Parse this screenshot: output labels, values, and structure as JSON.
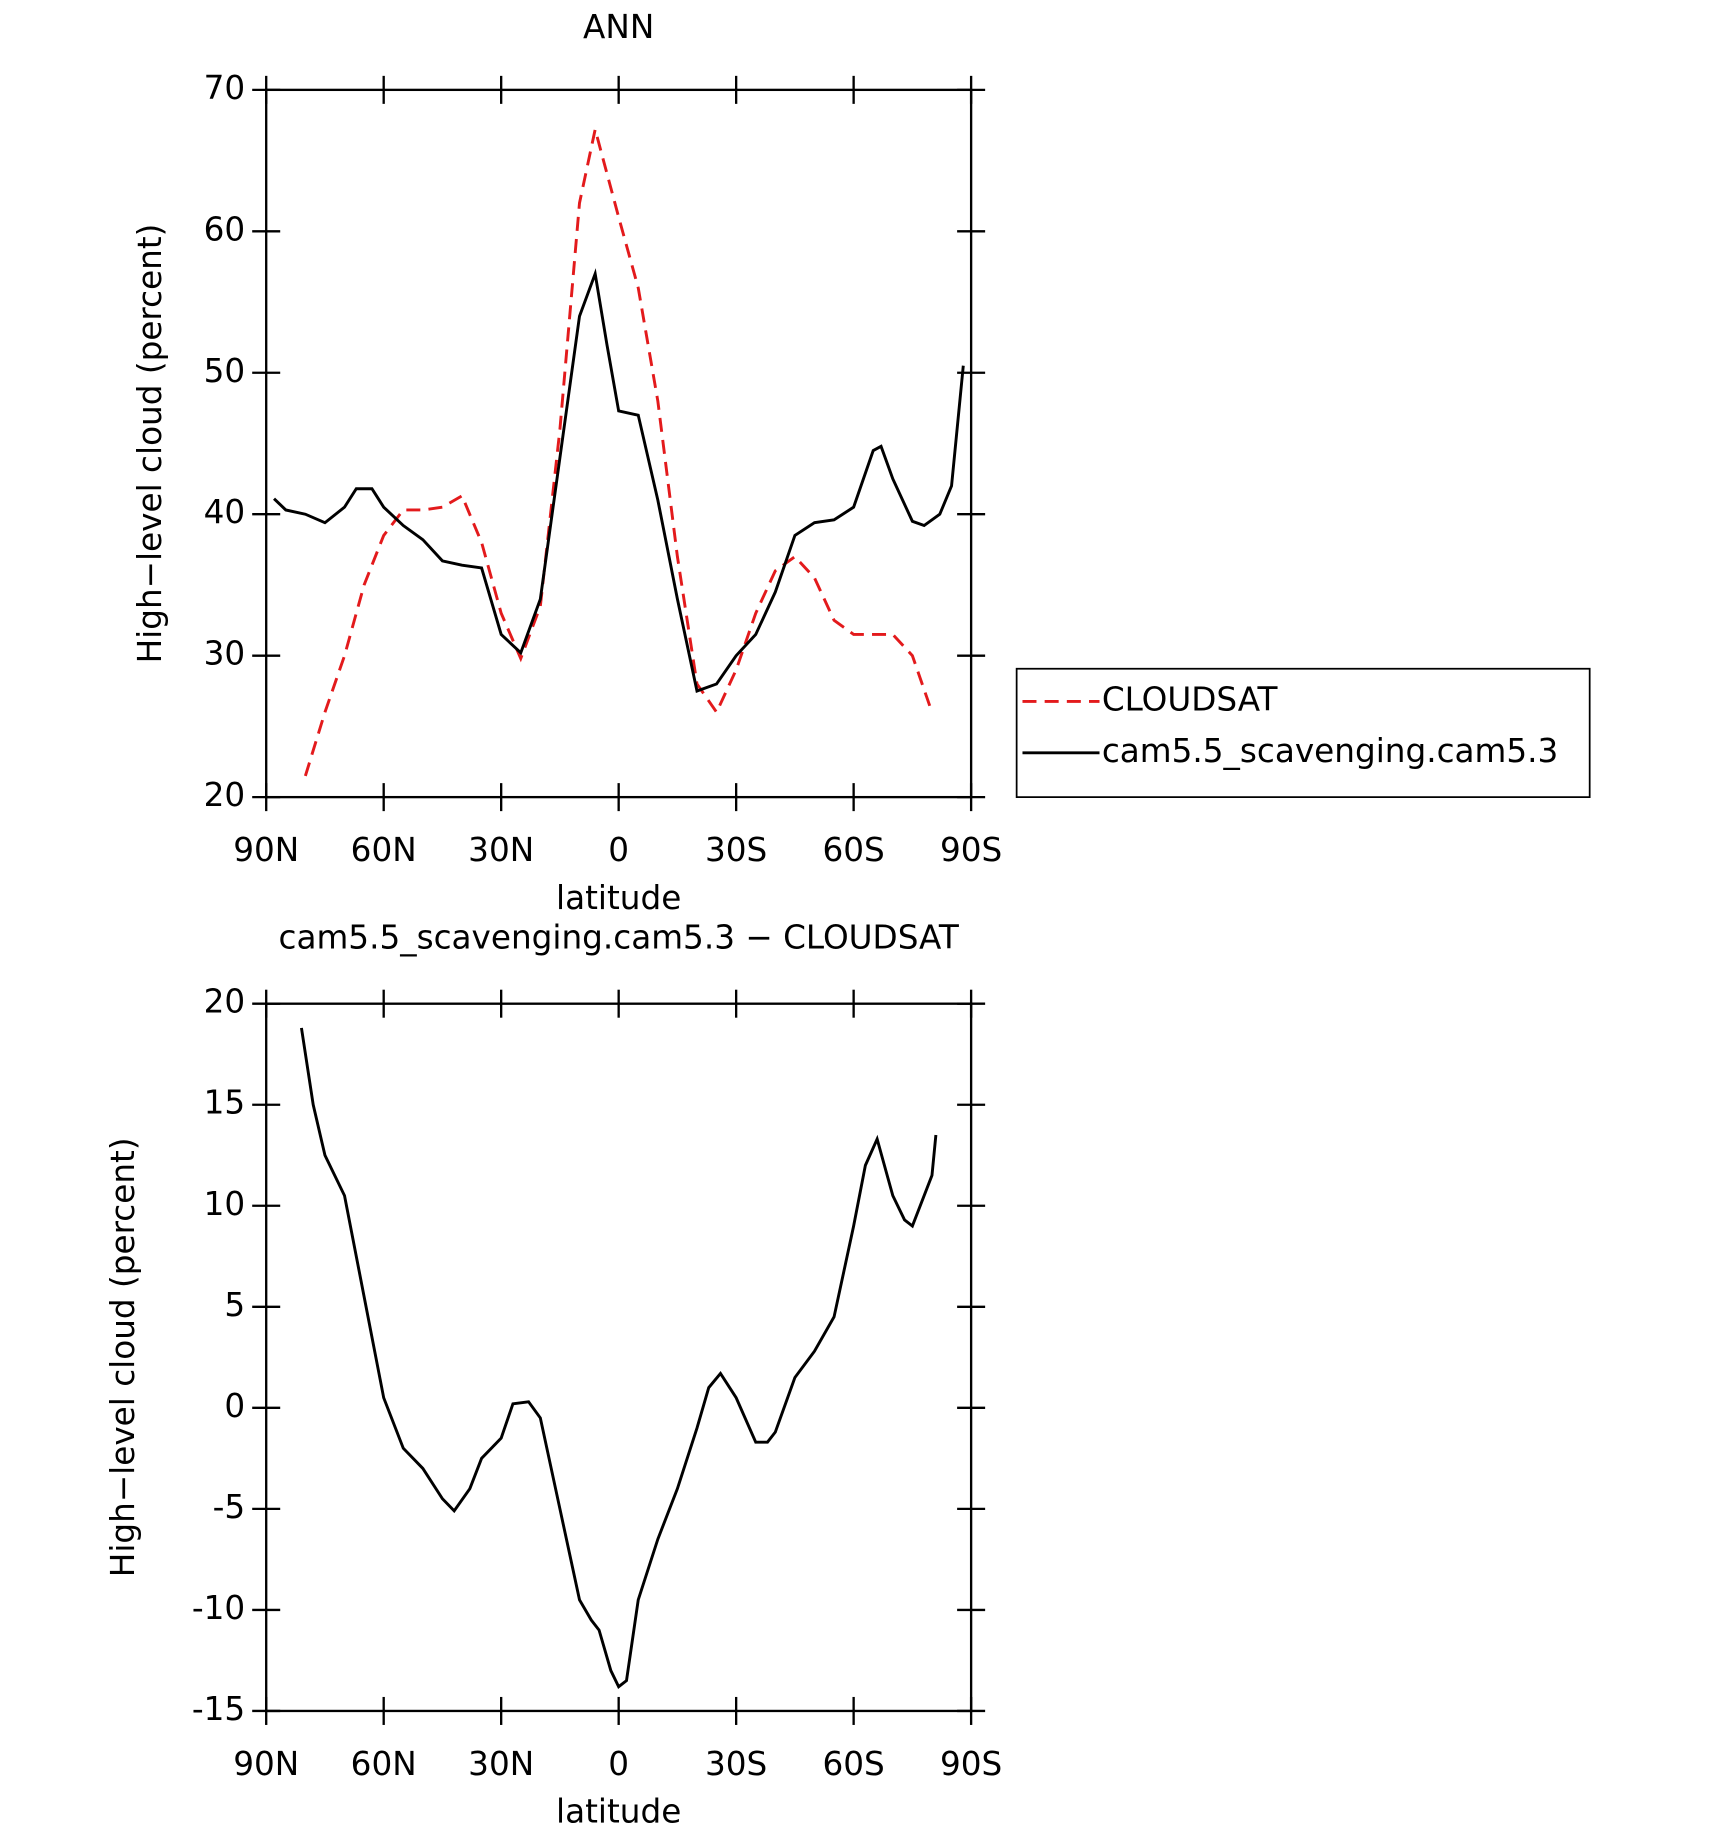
{
  "chart_data": [
    {
      "type": "line",
      "title": "ANN",
      "x_label": "latitude",
      "y_label": "High−level cloud (percent)",
      "xlim": [
        90,
        -90
      ],
      "xticks": [
        {
          "value": 90,
          "label": "90N"
        },
        {
          "value": 60,
          "label": "60N"
        },
        {
          "value": 30,
          "label": "30N"
        },
        0,
        {
          "value": -30,
          "label": "30S"
        },
        {
          "value": -60,
          "label": "60S"
        },
        {
          "value": -90,
          "label": "90S"
        }
      ],
      "ylim": [
        20,
        70
      ],
      "yticks": [
        20,
        30,
        40,
        50,
        60,
        70
      ],
      "legend": "right",
      "series": [
        {
          "name": "CLOUDSAT",
          "color": "#e31a1c",
          "dash": true,
          "x": [
            80,
            75,
            70,
            65,
            60,
            55,
            50,
            45,
            40,
            35,
            30,
            25,
            20,
            15,
            10,
            6,
            0,
            -5,
            -10,
            -15,
            -20,
            -25,
            -30,
            -35,
            -40,
            -45,
            -50,
            -55,
            -60,
            -65,
            -70,
            -75,
            -80
          ],
          "values": [
            21.5,
            26,
            30,
            35,
            38.5,
            40.3,
            40.3,
            40.5,
            41.3,
            38,
            33,
            29.8,
            33.5,
            46,
            62,
            67.2,
            61,
            56,
            48,
            37,
            28,
            26,
            29,
            33,
            36,
            37,
            35.5,
            32.5,
            31.5,
            31.5,
            31.5,
            30,
            26
          ]
        },
        {
          "name": "cam5.5_scavenging.cam5.3",
          "color": "#000000",
          "dash": false,
          "x": [
            88,
            85,
            80,
            75,
            70,
            67,
            63,
            60,
            55,
            50,
            45,
            40,
            35,
            30,
            25,
            20,
            15,
            10,
            6,
            3,
            0,
            -5,
            -10,
            -15,
            -20,
            -25,
            -30,
            -35,
            -40,
            -45,
            -50,
            -55,
            -60,
            -65,
            -67,
            -70,
            -75,
            -78,
            -82,
            -85,
            -88
          ],
          "values": [
            41.1,
            40.3,
            40,
            39.4,
            40.5,
            41.8,
            41.8,
            40.5,
            39.2,
            38.2,
            36.7,
            36.4,
            36.2,
            31.5,
            30.2,
            34,
            44,
            54,
            57,
            52,
            47.3,
            47,
            41,
            34,
            27.5,
            28,
            30,
            31.5,
            34.5,
            38.5,
            39.4,
            39.6,
            40.5,
            44.5,
            44.8,
            42.5,
            39.5,
            39.2,
            40,
            42,
            50.5
          ]
        }
      ]
    },
    {
      "type": "line",
      "title": "cam5.5_scavenging.cam5.3 − CLOUDSAT",
      "x_label": "latitude",
      "y_label": "High−level cloud (percent)",
      "xlim": [
        90,
        -90
      ],
      "xticks": [
        {
          "value": 90,
          "label": "90N"
        },
        {
          "value": 60,
          "label": "60N"
        },
        {
          "value": 30,
          "label": "30N"
        },
        0,
        {
          "value": -30,
          "label": "30S"
        },
        {
          "value": -60,
          "label": "60S"
        },
        {
          "value": -90,
          "label": "90S"
        }
      ],
      "ylim": [
        -15,
        20
      ],
      "yticks": [
        -15,
        -10,
        -5,
        0,
        5,
        10,
        15,
        20
      ],
      "series": [
        {
          "color": "#000000",
          "dash": false,
          "x": [
            81,
            78,
            75,
            70,
            65,
            60,
            55,
            50,
            45,
            42,
            38,
            35,
            30,
            27,
            23,
            20,
            15,
            10,
            7,
            5,
            2,
            0,
            -2,
            -5,
            -10,
            -15,
            -20,
            -23,
            -26,
            -30,
            -35,
            -38,
            -40,
            -45,
            -50,
            -55,
            -60,
            -63,
            -66,
            -70,
            -73,
            -75,
            -80,
            -81
          ],
          "values": [
            18.8,
            15,
            12.5,
            10.5,
            5.5,
            0.5,
            -2,
            -3,
            -4.5,
            -5.1,
            -4,
            -2.5,
            -1.5,
            0.2,
            0.3,
            -0.5,
            -5,
            -9.5,
            -10.5,
            -11,
            -13,
            -13.8,
            -13.5,
            -9.5,
            -6.5,
            -4,
            -1,
            1,
            1.7,
            0.5,
            -1.7,
            -1.7,
            -1.2,
            1.5,
            2.8,
            4.5,
            9,
            12,
            13.3,
            10.5,
            9.3,
            9,
            11.5,
            13.5
          ]
        }
      ]
    }
  ]
}
